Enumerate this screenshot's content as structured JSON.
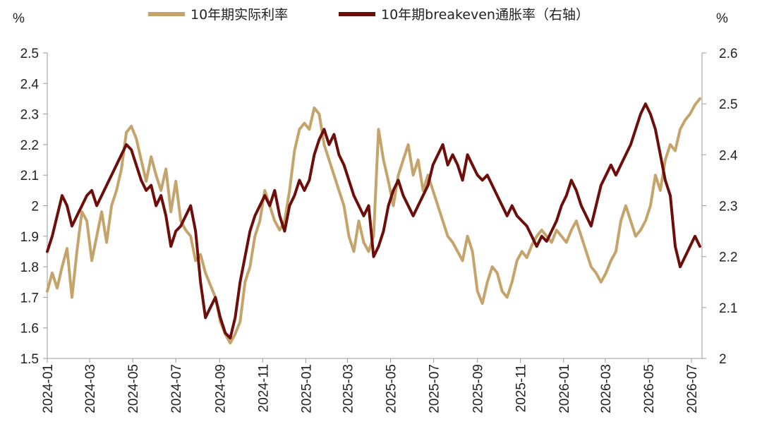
{
  "chart_data": {
    "type": "line",
    "title": "",
    "legend_position": "top",
    "grid": false,
    "left_unit": "%",
    "right_unit": "%",
    "x_axis": {
      "start": "2024-01",
      "end": "2026-07",
      "tick_labels": [
        "2024-01",
        "2024-03",
        "2024-05",
        "2024-07",
        "2024-09",
        "2024-11",
        "2025-01",
        "2025-03",
        "2025-05",
        "2025-07",
        "2025-09",
        "2025-11",
        "2026-01",
        "2026-03",
        "2026-05",
        "2026-07"
      ]
    },
    "y_left": {
      "min": 1.5,
      "max": 2.5,
      "tick_labels": [
        "1.5",
        "1.6",
        "1.7",
        "1.8",
        "1.9",
        "2",
        "2.1",
        "2.2",
        "2.3",
        "2.4",
        "2.5"
      ]
    },
    "y_right": {
      "min": 2.0,
      "max": 2.6,
      "tick_labels": [
        "2",
        "2.1",
        "2.2",
        "2.3",
        "2.4",
        "2.5",
        "2.6"
      ]
    },
    "series": [
      {
        "name": "10年期实际利率",
        "axis": "left",
        "color": "#C4A46B",
        "points": [
          [
            "2024-01-01",
            1.72
          ],
          [
            "2024-01-08",
            1.78
          ],
          [
            "2024-01-15",
            1.73
          ],
          [
            "2024-01-22",
            1.8
          ],
          [
            "2024-01-29",
            1.86
          ],
          [
            "2024-02-05",
            1.7
          ],
          [
            "2024-02-12",
            1.85
          ],
          [
            "2024-02-19",
            1.98
          ],
          [
            "2024-02-26",
            1.95
          ],
          [
            "2024-03-04",
            1.82
          ],
          [
            "2024-03-11",
            1.9
          ],
          [
            "2024-03-18",
            1.98
          ],
          [
            "2024-03-25",
            1.88
          ],
          [
            "2024-04-01",
            2.0
          ],
          [
            "2024-04-08",
            2.05
          ],
          [
            "2024-04-15",
            2.12
          ],
          [
            "2024-04-22",
            2.24
          ],
          [
            "2024-04-29",
            2.26
          ],
          [
            "2024-05-06",
            2.22
          ],
          [
            "2024-05-13",
            2.15
          ],
          [
            "2024-05-20",
            2.08
          ],
          [
            "2024-05-27",
            2.16
          ],
          [
            "2024-06-03",
            2.1
          ],
          [
            "2024-06-10",
            2.05
          ],
          [
            "2024-06-17",
            2.12
          ],
          [
            "2024-06-24",
            1.98
          ],
          [
            "2024-07-01",
            2.08
          ],
          [
            "2024-07-08",
            1.95
          ],
          [
            "2024-07-15",
            1.92
          ],
          [
            "2024-07-22",
            1.9
          ],
          [
            "2024-07-29",
            1.82
          ],
          [
            "2024-08-05",
            1.84
          ],
          [
            "2024-08-12",
            1.78
          ],
          [
            "2024-08-19",
            1.74
          ],
          [
            "2024-08-26",
            1.7
          ],
          [
            "2024-09-02",
            1.62
          ],
          [
            "2024-09-09",
            1.58
          ],
          [
            "2024-09-16",
            1.55
          ],
          [
            "2024-09-23",
            1.58
          ],
          [
            "2024-09-30",
            1.62
          ],
          [
            "2024-10-07",
            1.75
          ],
          [
            "2024-10-14",
            1.8
          ],
          [
            "2024-10-21",
            1.9
          ],
          [
            "2024-10-28",
            1.95
          ],
          [
            "2024-11-04",
            2.05
          ],
          [
            "2024-11-11",
            2.0
          ],
          [
            "2024-11-18",
            1.95
          ],
          [
            "2024-11-25",
            1.92
          ],
          [
            "2024-12-02",
            1.95
          ],
          [
            "2024-12-09",
            2.05
          ],
          [
            "2024-12-16",
            2.18
          ],
          [
            "2024-12-23",
            2.25
          ],
          [
            "2024-12-30",
            2.27
          ],
          [
            "2025-01-06",
            2.25
          ],
          [
            "2025-01-13",
            2.32
          ],
          [
            "2025-01-20",
            2.3
          ],
          [
            "2025-01-27",
            2.2
          ],
          [
            "2025-02-03",
            2.15
          ],
          [
            "2025-02-10",
            2.1
          ],
          [
            "2025-02-17",
            2.05
          ],
          [
            "2025-02-24",
            2.0
          ],
          [
            "2025-03-03",
            1.9
          ],
          [
            "2025-03-10",
            1.85
          ],
          [
            "2025-03-17",
            1.95
          ],
          [
            "2025-03-24",
            1.88
          ],
          [
            "2025-03-31",
            1.85
          ],
          [
            "2025-04-07",
            1.9
          ],
          [
            "2025-04-14",
            2.25
          ],
          [
            "2025-04-21",
            2.15
          ],
          [
            "2025-04-28",
            2.08
          ],
          [
            "2025-05-05",
            2.0
          ],
          [
            "2025-05-12",
            2.1
          ],
          [
            "2025-05-19",
            2.15
          ],
          [
            "2025-05-26",
            2.2
          ],
          [
            "2025-06-02",
            2.1
          ],
          [
            "2025-06-09",
            2.15
          ],
          [
            "2025-06-16",
            2.05
          ],
          [
            "2025-06-23",
            2.1
          ],
          [
            "2025-06-30",
            2.05
          ],
          [
            "2025-07-07",
            2.0
          ],
          [
            "2025-07-14",
            1.95
          ],
          [
            "2025-07-21",
            1.9
          ],
          [
            "2025-07-28",
            1.88
          ],
          [
            "2025-08-04",
            1.85
          ],
          [
            "2025-08-11",
            1.82
          ],
          [
            "2025-08-18",
            1.9
          ],
          [
            "2025-08-25",
            1.85
          ],
          [
            "2025-09-01",
            1.72
          ],
          [
            "2025-09-08",
            1.68
          ],
          [
            "2025-09-15",
            1.75
          ],
          [
            "2025-09-22",
            1.8
          ],
          [
            "2025-09-29",
            1.78
          ],
          [
            "2025-10-06",
            1.72
          ],
          [
            "2025-10-13",
            1.7
          ],
          [
            "2025-10-20",
            1.75
          ],
          [
            "2025-10-27",
            1.82
          ],
          [
            "2025-11-03",
            1.85
          ],
          [
            "2025-11-10",
            1.83
          ],
          [
            "2025-11-17",
            1.87
          ],
          [
            "2025-11-24",
            1.9
          ],
          [
            "2025-12-01",
            1.92
          ],
          [
            "2025-12-08",
            1.9
          ],
          [
            "2025-12-15",
            1.88
          ],
          [
            "2025-12-22",
            1.92
          ],
          [
            "2025-12-29",
            1.9
          ],
          [
            "2026-01-05",
            1.88
          ],
          [
            "2026-01-12",
            1.92
          ],
          [
            "2026-01-19",
            1.95
          ],
          [
            "2026-01-26",
            1.9
          ],
          [
            "2026-02-02",
            1.85
          ],
          [
            "2026-02-09",
            1.8
          ],
          [
            "2026-02-16",
            1.78
          ],
          [
            "2026-02-23",
            1.75
          ],
          [
            "2026-03-02",
            1.78
          ],
          [
            "2026-03-09",
            1.82
          ],
          [
            "2026-03-16",
            1.85
          ],
          [
            "2026-03-23",
            1.95
          ],
          [
            "2026-03-30",
            2.0
          ],
          [
            "2026-04-06",
            1.95
          ],
          [
            "2026-04-13",
            1.9
          ],
          [
            "2026-04-20",
            1.92
          ],
          [
            "2026-04-27",
            1.95
          ],
          [
            "2026-05-04",
            2.0
          ],
          [
            "2026-05-11",
            2.1
          ],
          [
            "2026-05-18",
            2.05
          ],
          [
            "2026-05-25",
            2.15
          ],
          [
            "2026-06-01",
            2.2
          ],
          [
            "2026-06-08",
            2.18
          ],
          [
            "2026-06-15",
            2.25
          ],
          [
            "2026-06-22",
            2.28
          ],
          [
            "2026-06-29",
            2.3
          ],
          [
            "2026-07-06",
            2.33
          ],
          [
            "2026-07-13",
            2.35
          ]
        ]
      },
      {
        "name": "10年期breakeven通胀率（右轴）",
        "axis": "right",
        "color": "#6E0E0A",
        "points": [
          [
            "2024-01-01",
            2.21
          ],
          [
            "2024-01-08",
            2.24
          ],
          [
            "2024-01-15",
            2.28
          ],
          [
            "2024-01-22",
            2.32
          ],
          [
            "2024-01-29",
            2.3
          ],
          [
            "2024-02-05",
            2.26
          ],
          [
            "2024-02-12",
            2.28
          ],
          [
            "2024-02-19",
            2.3
          ],
          [
            "2024-02-26",
            2.32
          ],
          [
            "2024-03-04",
            2.33
          ],
          [
            "2024-03-11",
            2.3
          ],
          [
            "2024-03-18",
            2.32
          ],
          [
            "2024-03-25",
            2.34
          ],
          [
            "2024-04-01",
            2.36
          ],
          [
            "2024-04-08",
            2.38
          ],
          [
            "2024-04-15",
            2.4
          ],
          [
            "2024-04-22",
            2.42
          ],
          [
            "2024-04-29",
            2.41
          ],
          [
            "2024-05-06",
            2.38
          ],
          [
            "2024-05-13",
            2.35
          ],
          [
            "2024-05-20",
            2.33
          ],
          [
            "2024-05-27",
            2.34
          ],
          [
            "2024-06-03",
            2.3
          ],
          [
            "2024-06-10",
            2.32
          ],
          [
            "2024-06-17",
            2.28
          ],
          [
            "2024-06-24",
            2.22
          ],
          [
            "2024-07-01",
            2.25
          ],
          [
            "2024-07-08",
            2.26
          ],
          [
            "2024-07-15",
            2.28
          ],
          [
            "2024-07-22",
            2.3
          ],
          [
            "2024-07-29",
            2.25
          ],
          [
            "2024-08-05",
            2.15
          ],
          [
            "2024-08-12",
            2.08
          ],
          [
            "2024-08-19",
            2.1
          ],
          [
            "2024-08-26",
            2.12
          ],
          [
            "2024-09-02",
            2.08
          ],
          [
            "2024-09-09",
            2.05
          ],
          [
            "2024-09-16",
            2.04
          ],
          [
            "2024-09-23",
            2.08
          ],
          [
            "2024-09-30",
            2.15
          ],
          [
            "2024-10-07",
            2.2
          ],
          [
            "2024-10-14",
            2.25
          ],
          [
            "2024-10-21",
            2.28
          ],
          [
            "2024-10-28",
            2.3
          ],
          [
            "2024-11-04",
            2.32
          ],
          [
            "2024-11-11",
            2.3
          ],
          [
            "2024-11-18",
            2.33
          ],
          [
            "2024-11-25",
            2.28
          ],
          [
            "2024-12-02",
            2.25
          ],
          [
            "2024-12-09",
            2.3
          ],
          [
            "2024-12-16",
            2.32
          ],
          [
            "2024-12-23",
            2.35
          ],
          [
            "2024-12-30",
            2.33
          ],
          [
            "2025-01-06",
            2.35
          ],
          [
            "2025-01-13",
            2.4
          ],
          [
            "2025-01-20",
            2.43
          ],
          [
            "2025-01-27",
            2.45
          ],
          [
            "2025-02-03",
            2.42
          ],
          [
            "2025-02-10",
            2.44
          ],
          [
            "2025-02-17",
            2.4
          ],
          [
            "2025-02-24",
            2.38
          ],
          [
            "2025-03-03",
            2.35
          ],
          [
            "2025-03-10",
            2.32
          ],
          [
            "2025-03-17",
            2.3
          ],
          [
            "2025-03-24",
            2.28
          ],
          [
            "2025-03-31",
            2.3
          ],
          [
            "2025-04-07",
            2.2
          ],
          [
            "2025-04-14",
            2.22
          ],
          [
            "2025-04-21",
            2.25
          ],
          [
            "2025-04-28",
            2.3
          ],
          [
            "2025-05-05",
            2.33
          ],
          [
            "2025-05-12",
            2.35
          ],
          [
            "2025-05-19",
            2.32
          ],
          [
            "2025-05-26",
            2.3
          ],
          [
            "2025-06-02",
            2.28
          ],
          [
            "2025-06-09",
            2.3
          ],
          [
            "2025-06-16",
            2.32
          ],
          [
            "2025-06-23",
            2.34
          ],
          [
            "2025-06-30",
            2.38
          ],
          [
            "2025-07-07",
            2.4
          ],
          [
            "2025-07-14",
            2.42
          ],
          [
            "2025-07-21",
            2.38
          ],
          [
            "2025-07-28",
            2.4
          ],
          [
            "2025-08-04",
            2.38
          ],
          [
            "2025-08-11",
            2.35
          ],
          [
            "2025-08-18",
            2.4
          ],
          [
            "2025-08-25",
            2.38
          ],
          [
            "2025-09-01",
            2.36
          ],
          [
            "2025-09-08",
            2.35
          ],
          [
            "2025-09-15",
            2.36
          ],
          [
            "2025-09-22",
            2.34
          ],
          [
            "2025-09-29",
            2.32
          ],
          [
            "2025-10-06",
            2.3
          ],
          [
            "2025-10-13",
            2.28
          ],
          [
            "2025-10-20",
            2.3
          ],
          [
            "2025-10-27",
            2.28
          ],
          [
            "2025-11-03",
            2.27
          ],
          [
            "2025-11-10",
            2.26
          ],
          [
            "2025-11-17",
            2.24
          ],
          [
            "2025-11-24",
            2.22
          ],
          [
            "2025-12-01",
            2.24
          ],
          [
            "2025-12-08",
            2.23
          ],
          [
            "2025-12-15",
            2.25
          ],
          [
            "2025-12-22",
            2.27
          ],
          [
            "2025-12-29",
            2.3
          ],
          [
            "2026-01-05",
            2.32
          ],
          [
            "2026-01-12",
            2.35
          ],
          [
            "2026-01-19",
            2.33
          ],
          [
            "2026-01-26",
            2.3
          ],
          [
            "2026-02-02",
            2.28
          ],
          [
            "2026-02-09",
            2.26
          ],
          [
            "2026-02-16",
            2.3
          ],
          [
            "2026-02-23",
            2.34
          ],
          [
            "2026-03-02",
            2.36
          ],
          [
            "2026-03-09",
            2.38
          ],
          [
            "2026-03-16",
            2.36
          ],
          [
            "2026-03-23",
            2.38
          ],
          [
            "2026-03-30",
            2.4
          ],
          [
            "2026-04-06",
            2.42
          ],
          [
            "2026-04-13",
            2.45
          ],
          [
            "2026-04-20",
            2.48
          ],
          [
            "2026-04-27",
            2.5
          ],
          [
            "2026-05-04",
            2.48
          ],
          [
            "2026-05-11",
            2.45
          ],
          [
            "2026-05-18",
            2.4
          ],
          [
            "2026-05-25",
            2.35
          ],
          [
            "2026-06-01",
            2.32
          ],
          [
            "2026-06-08",
            2.22
          ],
          [
            "2026-06-15",
            2.18
          ],
          [
            "2026-06-22",
            2.2
          ],
          [
            "2026-06-29",
            2.22
          ],
          [
            "2026-07-06",
            2.24
          ],
          [
            "2026-07-13",
            2.22
          ]
        ]
      }
    ]
  }
}
